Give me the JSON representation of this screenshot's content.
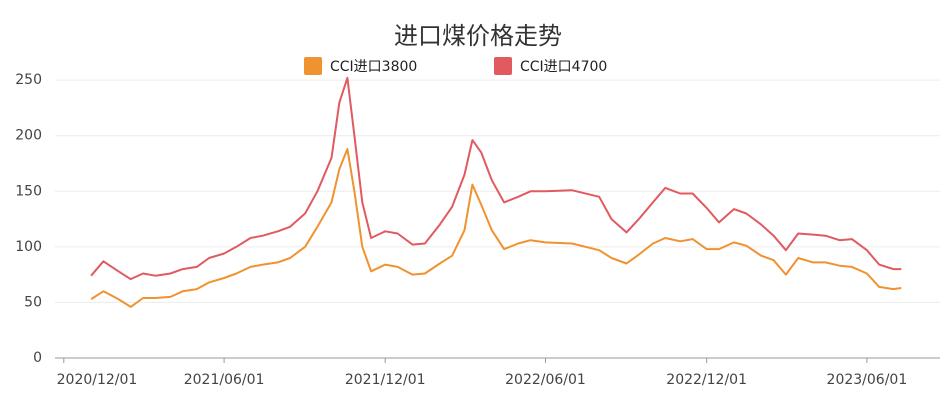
{
  "chart_data": {
    "type": "line",
    "title": "进口煤价格走势",
    "x": [
      "2021/01/01",
      "2021/01/15",
      "2021/02/01",
      "2021/02/15",
      "2021/03/01",
      "2021/03/15",
      "2021/04/01",
      "2021/04/15",
      "2021/05/01",
      "2021/05/15",
      "2021/06/01",
      "2021/06/15",
      "2021/07/01",
      "2021/07/15",
      "2021/08/01",
      "2021/08/15",
      "2021/09/01",
      "2021/09/15",
      "2021/10/01",
      "2021/10/10",
      "2021/10/19",
      "2021/10/27",
      "2021/11/05",
      "2021/11/15",
      "2021/12/01",
      "2021/12/15",
      "2022/01/01",
      "2022/01/15",
      "2022/02/01",
      "2022/02/15",
      "2022/03/01",
      "2022/03/10",
      "2022/03/20",
      "2022/04/01",
      "2022/04/15",
      "2022/05/01",
      "2022/05/15",
      "2022/06/01",
      "2022/07/01",
      "2022/08/01",
      "2022/08/15",
      "2022/09/01",
      "2022/09/15",
      "2022/10/01",
      "2022/10/15",
      "2022/11/01",
      "2022/11/15",
      "2022/12/01",
      "2022/12/15",
      "2023/01/01",
      "2023/01/15",
      "2023/02/01",
      "2023/02/15",
      "2023/03/01",
      "2023/03/15",
      "2023/04/01",
      "2023/04/15",
      "2023/05/01",
      "2023/05/15",
      "2023/06/01",
      "2023/06/15",
      "2023/07/01",
      "2023/07/10"
    ],
    "series": [
      {
        "name": "CCI进口3800",
        "color": "#f0922f",
        "values": [
          53,
          60,
          53,
          46,
          54,
          54,
          55,
          60,
          62,
          68,
          72,
          76,
          82,
          84,
          86,
          90,
          100,
          118,
          140,
          170,
          188,
          150,
          100,
          78,
          84,
          82,
          75,
          76,
          85,
          92,
          115,
          156,
          138,
          115,
          98,
          103,
          106,
          104,
          103,
          97,
          90,
          85,
          93,
          103,
          108,
          105,
          107,
          98,
          98,
          104,
          101,
          92,
          88,
          75,
          90,
          86,
          86,
          83,
          82,
          76,
          64,
          62,
          63
        ]
      },
      {
        "name": "CCI进口4700",
        "color": "#e05a5f",
        "values": [
          74,
          87,
          78,
          71,
          76,
          74,
          76,
          80,
          82,
          90,
          94,
          100,
          108,
          110,
          114,
          118,
          130,
          150,
          180,
          230,
          252,
          200,
          140,
          108,
          114,
          112,
          102,
          103,
          120,
          136,
          165,
          196,
          185,
          160,
          140,
          145,
          150,
          150,
          151,
          145,
          125,
          113,
          125,
          140,
          153,
          148,
          148,
          135,
          122,
          134,
          130,
          120,
          110,
          97,
          112,
          111,
          110,
          106,
          107,
          97,
          84,
          80,
          80
        ]
      }
    ],
    "xlim": [
      "2020/11/21",
      "2023/08/23"
    ],
    "xticks": [
      "2020/12/01",
      "2021/06/01",
      "2021/12/01",
      "2022/06/01",
      "2022/12/01",
      "2023/06/01"
    ],
    "ylim": [
      0,
      260
    ],
    "yticks": [
      0,
      50,
      100,
      150,
      200,
      250
    ],
    "grid": true
  }
}
